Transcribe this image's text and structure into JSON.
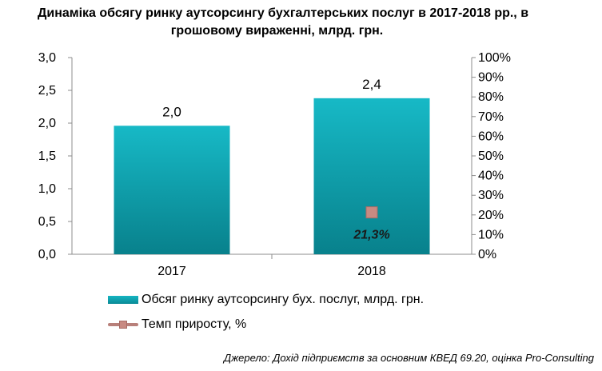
{
  "title_line1": "Динаміка обсягу ринку аутсорсингу бухгалтерських послуг в 2017-2018 рр., в",
  "title_line2": "грошовому вираженні, млрд. грн.",
  "source": "Джерело: Дохід підприємств за основним КВЕД 69.20, оцінка Pro-Consulting",
  "chart_data": {
    "type": "bar",
    "categories": [
      "2017",
      "2018"
    ],
    "series": [
      {
        "name": "Обсяг ринку аутсорсингу бух. послуг, млрд. грн.",
        "type": "bar",
        "axis": "left",
        "values": [
          1.96,
          2.38
        ],
        "data_labels": [
          "2,0",
          "2,4"
        ],
        "color": "#12a5b2"
      },
      {
        "name": "Темп приросту, %",
        "type": "line",
        "axis": "right",
        "values": [
          null,
          21.3
        ],
        "data_labels": [
          null,
          "21,3%"
        ],
        "color": "#c88a82"
      }
    ],
    "y_left": {
      "range": [
        0,
        3
      ],
      "ticks": [
        "0,0",
        "0,5",
        "1,0",
        "1,5",
        "2,0",
        "2,5",
        "3,0"
      ]
    },
    "y_right": {
      "range": [
        0,
        100
      ],
      "ticks": [
        "0%",
        "10%",
        "20%",
        "30%",
        "40%",
        "50%",
        "60%",
        "70%",
        "80%",
        "90%",
        "100%"
      ]
    },
    "legend_placement": "bottom-left",
    "grid": false
  }
}
